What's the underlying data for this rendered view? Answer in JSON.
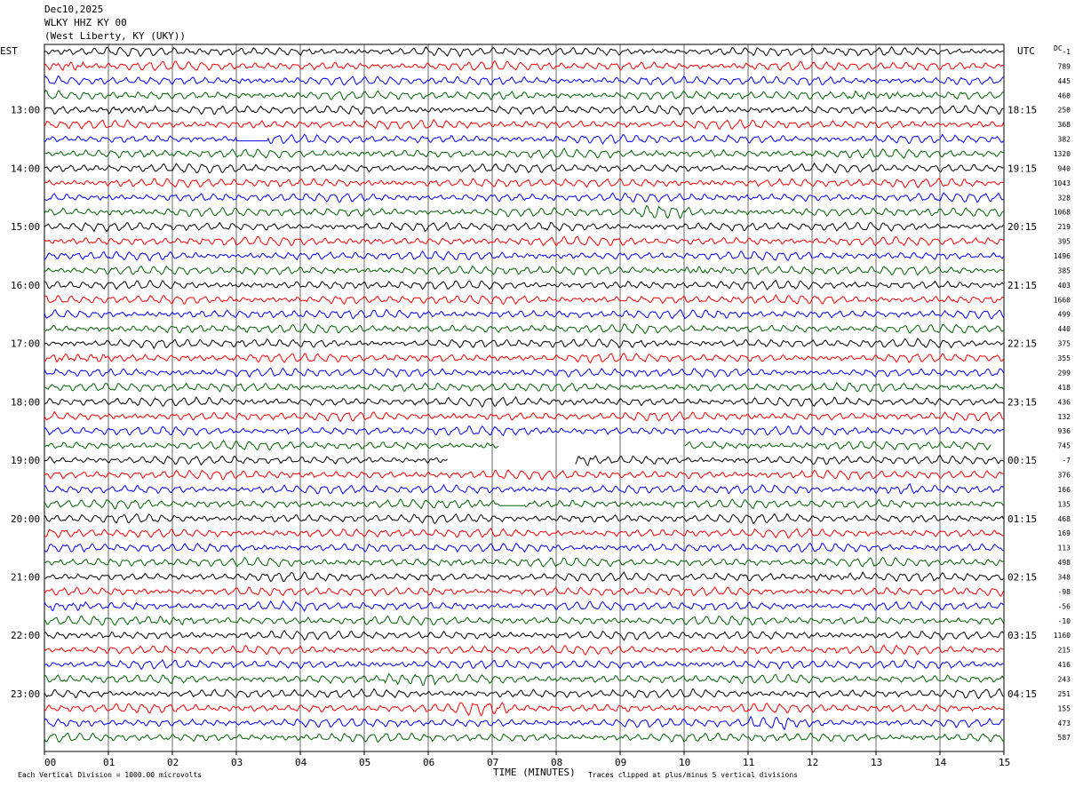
{
  "header": {
    "date": "Dec10,2025",
    "station": "WLKY HHZ KY 00",
    "location": "(West Liberty, KY (UKY))"
  },
  "left_zone": "EST",
  "right_zone": "UTC",
  "dc_label": "DC",
  "footer": {
    "scale_note": "Each Vertical Division = 1000.00 microvolts",
    "axis_title": "TIME (MINUTES)",
    "clip_note": "Traces clipped at plus/minus 5 vertical divisions"
  },
  "colors": {
    "trace_cycle": [
      "#000000",
      "#ff0000",
      "#0000ff",
      "#006400"
    ],
    "grid": "#000000"
  },
  "chart_data": {
    "type": "line",
    "title": "",
    "xlabel": "TIME (MINUTES)",
    "x_ticks": [
      "00",
      "01",
      "02",
      "03",
      "04",
      "05",
      "06",
      "07",
      "08",
      "09",
      "10",
      "11",
      "12",
      "13",
      "14",
      "15"
    ],
    "xlim": [
      0,
      15
    ],
    "rows_per_hour": 4,
    "hour_labels_est": [
      "13:00",
      "14:00",
      "15:00",
      "16:00",
      "17:00",
      "18:00",
      "19:00",
      "20:00",
      "21:00",
      "22:00",
      "23:00"
    ],
    "hour_labels_utc": [
      "18:15",
      "19:15",
      "20:15",
      "21:15",
      "22:15",
      "23:15",
      "00:15",
      "01:15",
      "02:15",
      "03:15",
      "04:15"
    ],
    "dc_offsets": [
      "-1",
      "789",
      "445",
      "460",
      "250",
      "368",
      "382",
      "1320",
      "940",
      "1043",
      "328",
      "1068",
      "219",
      "395",
      "1496",
      "385",
      "403",
      "1660",
      "499",
      "440",
      "375",
      "355",
      "299",
      "418",
      "436",
      "132",
      "936",
      "745",
      "-7",
      "376",
      "166",
      "135",
      "468",
      "169",
      "113",
      "498",
      "348",
      "-98",
      "-56",
      "-10",
      "1160",
      "215",
      "416",
      "243",
      "251",
      "155",
      "473",
      "587"
    ],
    "gaps": [
      {
        "row": 6,
        "from_min": 3.0,
        "to_min": 3.5,
        "type": "flat"
      },
      {
        "row": 27,
        "from_min": 7.1,
        "to_min": 10.0,
        "type": "missing"
      },
      {
        "row": 27,
        "from_min": 14.8,
        "to_min": 15.0,
        "type": "missing"
      },
      {
        "row": 28,
        "from_min": 6.3,
        "to_min": 8.3,
        "type": "missing"
      },
      {
        "row": 31,
        "from_min": 7.1,
        "to_min": 7.5,
        "type": "flat"
      }
    ]
  }
}
